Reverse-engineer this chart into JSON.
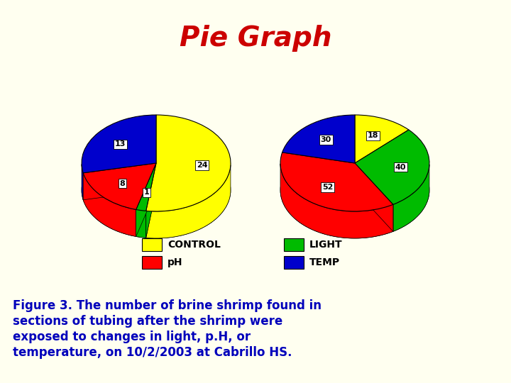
{
  "title": "Pie Graph",
  "title_color": "#cc0000",
  "title_fontsize": 28,
  "background_color": "#fffff0",
  "pie1": {
    "values": [
      24,
      1,
      8,
      13
    ],
    "colors": [
      "#ffff00",
      "#00bb00",
      "#ff0000",
      "#0000cc"
    ],
    "labels": [
      "24",
      "1",
      "8",
      "13"
    ],
    "start_angle": 90
  },
  "pie2": {
    "values": [
      18,
      40,
      52,
      30
    ],
    "colors": [
      "#ffff00",
      "#00bb00",
      "#ff0000",
      "#0000cc"
    ],
    "labels": [
      "18",
      "40",
      "52",
      "30"
    ],
    "start_angle": 90
  },
  "legend_items": [
    {
      "label": "CONTROL",
      "color": "#ffff00"
    },
    {
      "label": "LIGHT",
      "color": "#00bb00"
    },
    {
      "label": "pH",
      "color": "#ff0000"
    },
    {
      "label": "TEMP",
      "color": "#0000cc"
    }
  ],
  "caption_line1": "Figure 3. The number of brine shrimp found in",
  "caption_line2": "sections of tubing after the shrimp were",
  "caption_line3": "exposed to changes in light, p.H, or",
  "caption_line4": "temperature, on 10/2/2003 at Cabrillo HS.",
  "caption_color": "#0000bb",
  "caption_fontsize": 12
}
